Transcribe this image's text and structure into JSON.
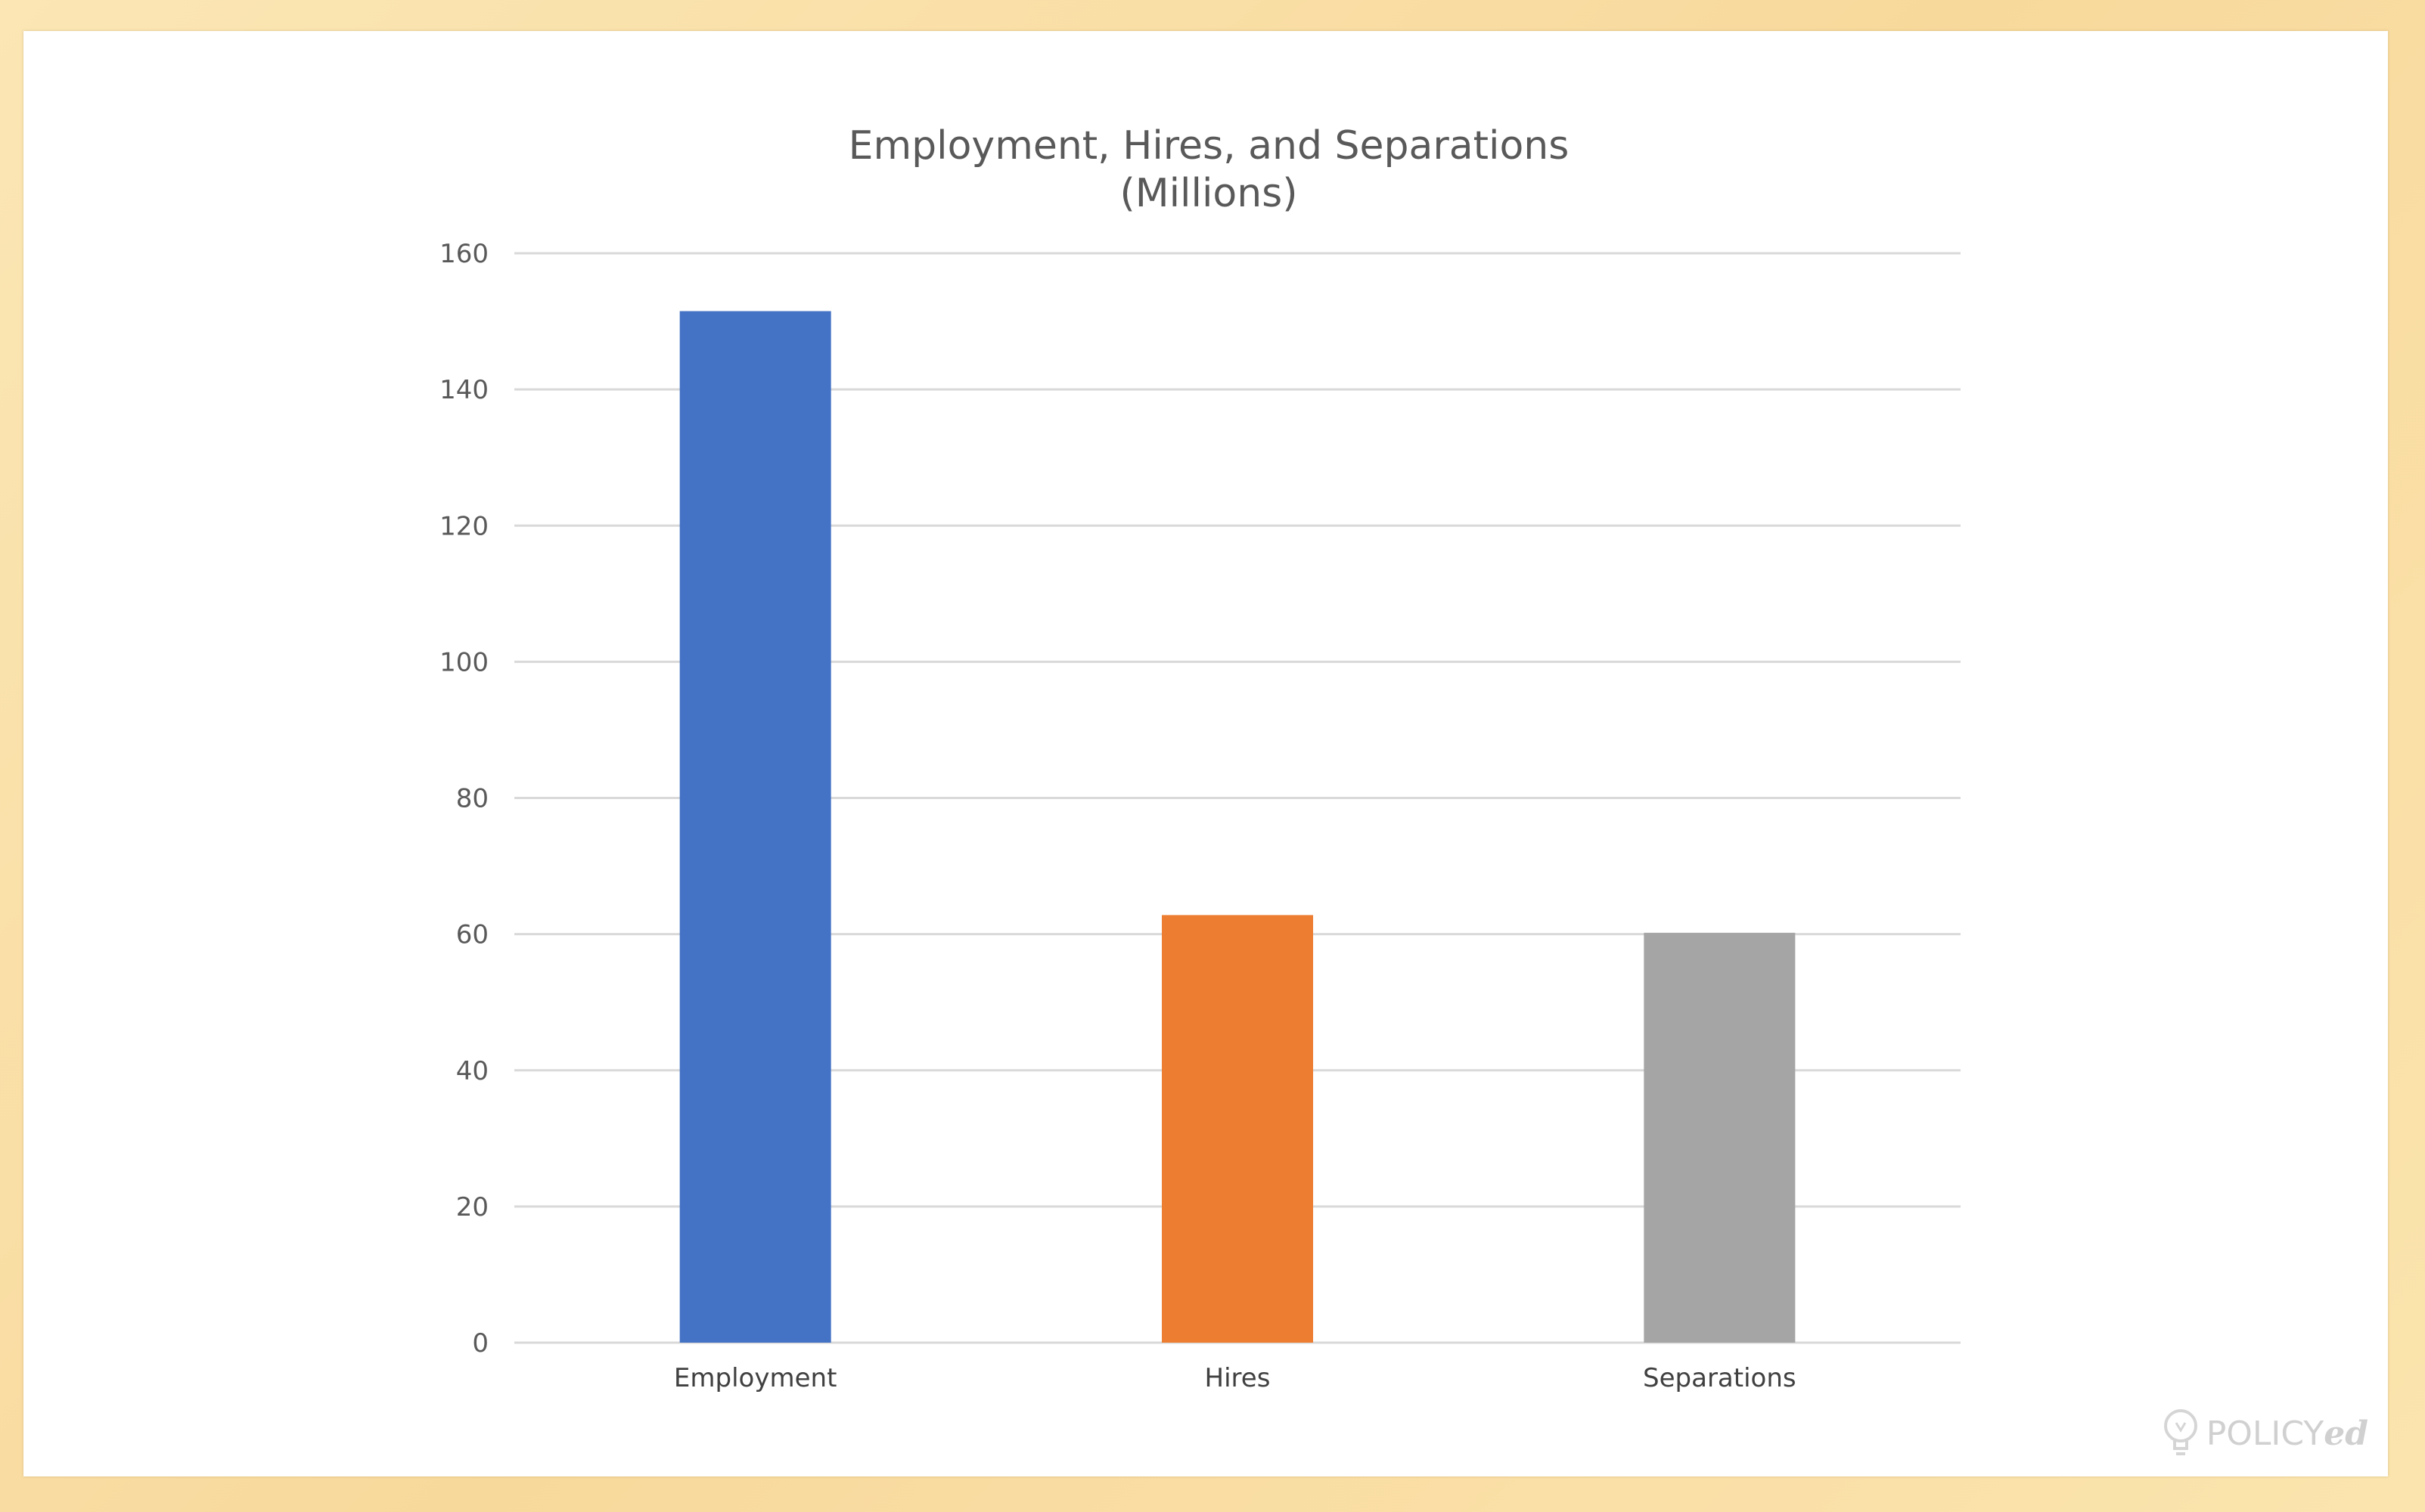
{
  "chart_data": {
    "type": "bar",
    "title_lines": [
      "Employment, Hires, and Separations",
      "(Millions)"
    ],
    "categories": [
      "Employment",
      "Hires",
      "Separations"
    ],
    "values": [
      151.5,
      62.8,
      60.2
    ],
    "colors": [
      "#4472c4",
      "#ed7d31",
      "#a5a5a5"
    ],
    "ylim": [
      0,
      160
    ],
    "yticks": [
      "0",
      "20",
      "40",
      "60",
      "80",
      "100",
      "120",
      "140",
      "160"
    ],
    "grid": true
  },
  "watermark": {
    "brand_plain": "POLICY",
    "brand_italic": "ed"
  }
}
